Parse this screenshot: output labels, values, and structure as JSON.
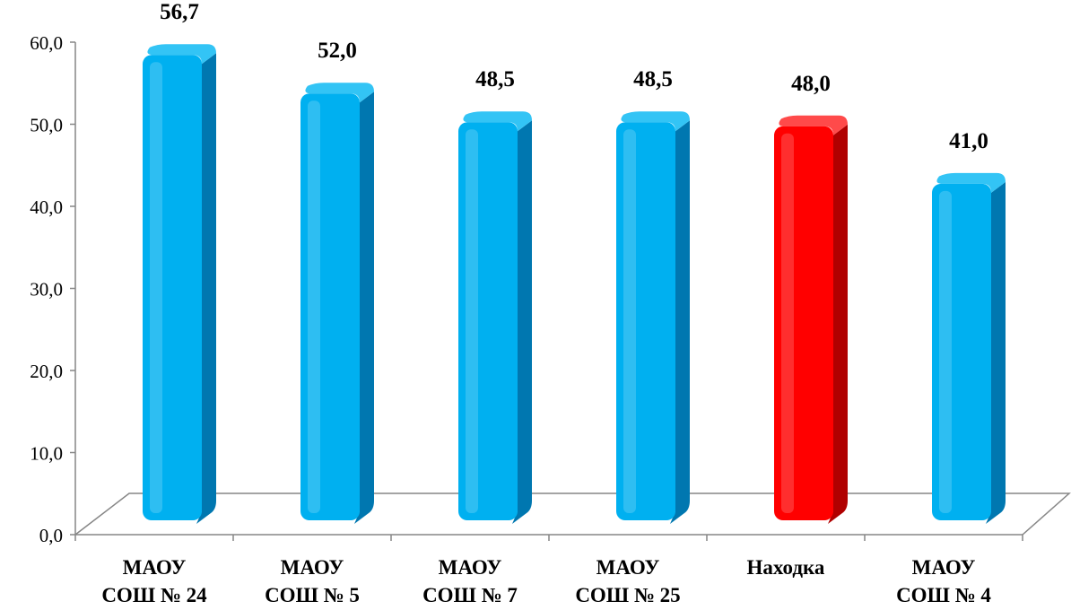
{
  "chart_data": {
    "type": "bar",
    "categories": [
      [
        "МАОУ",
        "СОШ № 24"
      ],
      [
        "МАОУ",
        "СОШ № 5"
      ],
      [
        "МАОУ",
        "СОШ № 7"
      ],
      [
        "МАОУ",
        "СОШ № 25"
      ],
      [
        "Находка"
      ],
      [
        "МАОУ",
        "СОШ № 4"
      ]
    ],
    "values": [
      56.7,
      52.0,
      48.5,
      48.5,
      48.0,
      41.0
    ],
    "value_labels": [
      "56,7",
      "52,0",
      "48,5",
      "48,5",
      "48,0",
      "41,0"
    ],
    "highlight_index": 4,
    "ylim": [
      0,
      60
    ],
    "yticks": [
      0,
      10,
      20,
      30,
      40,
      50,
      60
    ],
    "ytick_labels": [
      "0,0",
      "10,0",
      "20,0",
      "30,0",
      "40,0",
      "50,0",
      "60,0"
    ],
    "grid": false,
    "legend": "none",
    "title": "",
    "xlabel": "",
    "ylabel": ""
  },
  "colors": {
    "bar_front": "#00b0f0",
    "bar_side": "#0077b0",
    "bar_top": "#33c4f5",
    "highlight_front": "#ff0000",
    "highlight_side": "#b00000",
    "highlight_top": "#ff4a4a",
    "axis": "#868686",
    "text": "#000000"
  }
}
